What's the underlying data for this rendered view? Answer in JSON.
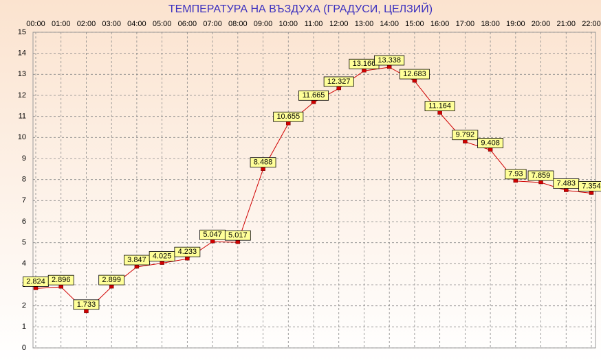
{
  "chart_data": {
    "type": "line",
    "title": "ТЕМПЕРАТУРА НА ВЪЗДУХА  (ГРАДУСИ, ЦЕЛЗИЙ)",
    "categories": [
      "00:00",
      "01:00",
      "02:00",
      "03:00",
      "04:00",
      "05:00",
      "06:00",
      "07:00",
      "08:00",
      "09:00",
      "10:00",
      "11:00",
      "12:00",
      "13:00",
      "14:00",
      "15:00",
      "16:00",
      "17:00",
      "18:00",
      "19:00",
      "20:00",
      "21:00",
      "22:00"
    ],
    "values": [
      2.824,
      2.896,
      1.733,
      2.899,
      3.847,
      4.025,
      4.233,
      5.047,
      5.017,
      8.488,
      10.655,
      11.665,
      12.327,
      13.166,
      13.338,
      12.683,
      11.164,
      9.792,
      9.408,
      7.93,
      7.859,
      7.483,
      7.354
    ],
    "color": "#d00000",
    "ylim": [
      0,
      15
    ],
    "yticks": [
      0,
      1,
      2,
      3,
      4,
      5,
      6,
      7,
      8,
      9,
      10,
      11,
      12,
      13,
      14,
      15
    ],
    "grid": true
  }
}
